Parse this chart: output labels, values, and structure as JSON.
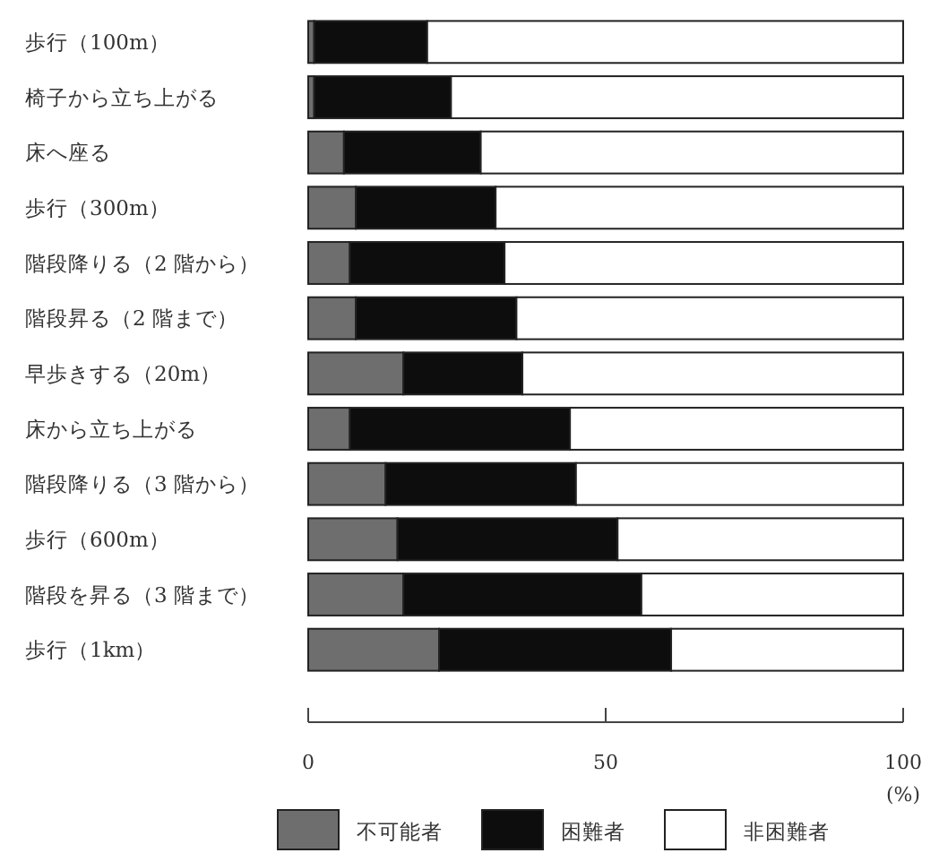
{
  "chart_data": {
    "type": "bar",
    "orientation": "horizontal",
    "stacked": true,
    "categories": [
      "歩行（100m）",
      "椅子から立ち上がる",
      "床へ座る",
      "歩行（300m）",
      "階段降りる（2 階から）",
      "階段昇る（2 階まで）",
      "早歩きする（20m）",
      "床から立ち上がる",
      "階段降りる（3 階から）",
      "歩行（600m）",
      "階段を昇る（3 階まで）",
      "歩行（1km）"
    ],
    "series": [
      {
        "name": "不可能者",
        "color": "#6e6e6e",
        "values": [
          1,
          1,
          6,
          8,
          7,
          8,
          16,
          7,
          13,
          15,
          16,
          22
        ]
      },
      {
        "name": "困難者",
        "color": "#0d0d0d",
        "values": [
          19,
          23,
          23,
          23.5,
          26,
          27,
          20,
          37,
          32,
          37,
          40,
          39
        ]
      },
      {
        "name": "非困難者",
        "color": "#ffffff",
        "values": [
          80,
          76,
          71,
          68.5,
          67,
          65,
          64,
          56,
          55,
          48,
          44,
          39
        ]
      }
    ],
    "xlim": [
      0,
      100
    ],
    "xticks": [
      0,
      50,
      100
    ],
    "xlabel": "(%)",
    "legend": "bottom"
  }
}
